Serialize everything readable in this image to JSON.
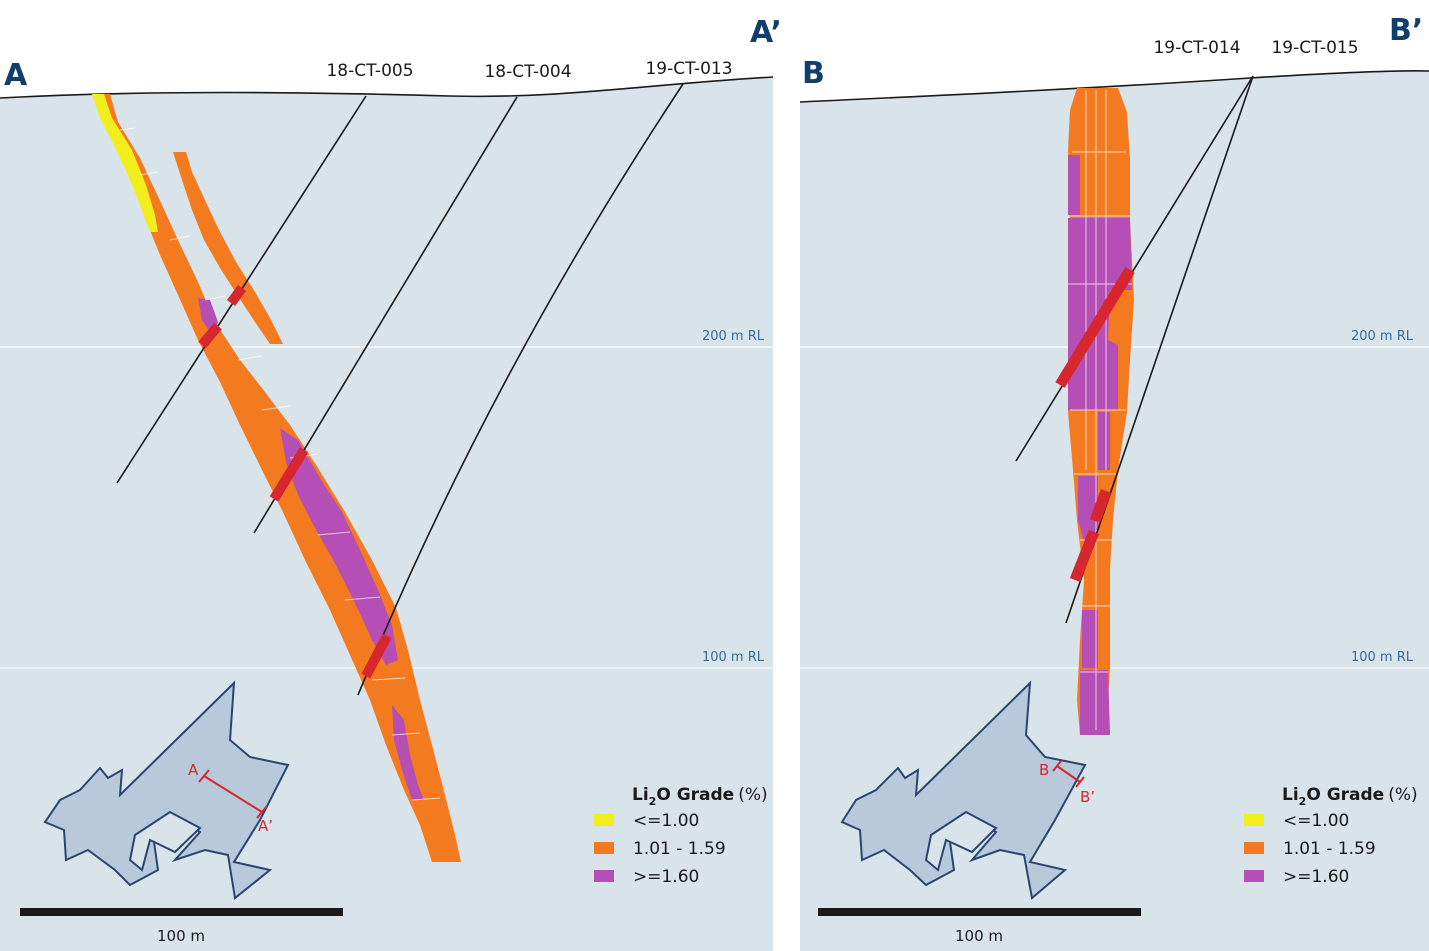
{
  "colors": {
    "background": "#d8e3ea",
    "yellow": "#f2ee1c",
    "orange": "#f47a20",
    "magenta": "#b54eb5",
    "intercept": "#d8262e",
    "rl_label": "#3a6a9c",
    "section_letter": "#113f6b",
    "inset_fill": "#b8c9db",
    "inset_stroke": "#2a4670"
  },
  "left": {
    "start_label": "A",
    "end_label": "A’",
    "holes": [
      "18-CT-005",
      "18-CT-004",
      "19-CT-013"
    ],
    "rl_labels": [
      "200 m RL",
      "100 m RL"
    ],
    "inset": {
      "start": "A",
      "end": "A’"
    },
    "legend": {
      "title_prefix": "Li",
      "title_sub": "2",
      "title_suffix": "O Grade",
      "title_unit": "(%)",
      "items": [
        "<=1.00",
        "1.01 - 1.59",
        ">=1.60"
      ]
    },
    "scale": "100 m"
  },
  "right": {
    "start_label": "B",
    "end_label": "B’",
    "holes": [
      "19-CT-014",
      "19-CT-015"
    ],
    "rl_labels": [
      "200 m RL",
      "100 m RL"
    ],
    "inset": {
      "start": "B",
      "end": "B’"
    },
    "legend": {
      "title_prefix": "Li",
      "title_sub": "2",
      "title_suffix": "O Grade",
      "title_unit": "(%)",
      "items": [
        "<=1.00",
        "1.01 - 1.59",
        ">=1.60"
      ]
    },
    "scale": "100 m"
  }
}
